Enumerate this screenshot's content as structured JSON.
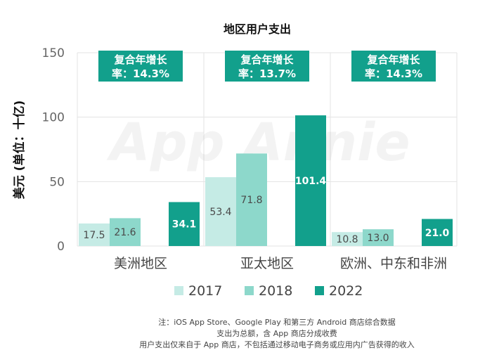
{
  "chart_data": {
    "type": "bar",
    "title": "地区用户支出",
    "ylabel": "美元 (单位：十亿)",
    "xlabel": "",
    "ylim": [
      0,
      150
    ],
    "yticks": [
      "0",
      "50",
      "100",
      "150"
    ],
    "categories": [
      "美洲地区",
      "亚太地区",
      "欧洲、中东和非洲"
    ],
    "series": [
      {
        "name": "2017",
        "color": "#c5ebe5",
        "values": [
          17.5,
          53.4,
          10.8
        ],
        "labels": [
          "17.5",
          "53.4",
          "10.8"
        ]
      },
      {
        "name": "2018",
        "color": "#8dd8cb",
        "values": [
          21.6,
          71.8,
          13.0
        ],
        "labels": [
          "21.6",
          "71.8",
          "13.0"
        ]
      },
      {
        "name": "2022",
        "color": "#12a08c",
        "values": [
          34.1,
          101.4,
          21.0
        ],
        "labels": [
          "34.1",
          "101.4",
          "21.0"
        ]
      }
    ],
    "cagr": [
      {
        "line1": "复合年增长",
        "line2": "率：14.3%"
      },
      {
        "line1": "复合年增长",
        "line2": "率：13.7%"
      },
      {
        "line1": "复合年增长",
        "line2": "率：14.3%"
      }
    ],
    "watermark": "App Annie",
    "notes": [
      "注：iOS App Store、Google Play 和第三方 Android 商店综合数据",
      "支出为总额，含 App 商店分成收费",
      "用户支出仅来自于 App 商店，不包括通过移动电子商务或应用内广告获得的收入"
    ],
    "colors": {
      "cagr_box": "#12a08c",
      "grid": "#e3e3e3"
    }
  }
}
